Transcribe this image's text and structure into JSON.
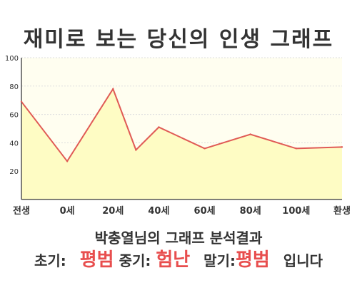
{
  "title": "재미로 보는 당신의 인생 그래프",
  "chart_data": {
    "type": "area",
    "x_labels": [
      "전생",
      "0세",
      "20세",
      "40세",
      "60세",
      "80세",
      "100세",
      "환생"
    ],
    "points": [
      {
        "x": "전생",
        "y": 69
      },
      {
        "x": "0세",
        "y": 27
      },
      {
        "x": "20세",
        "y": 78
      },
      {
        "x": "30세",
        "y": 35
      },
      {
        "x": "40세",
        "y": 51
      },
      {
        "x": "60세",
        "y": 36
      },
      {
        "x": "80세",
        "y": 46
      },
      {
        "x": "100세",
        "y": 36
      },
      {
        "x": "환생",
        "y": 37
      }
    ],
    "yticks": [
      20,
      40,
      60,
      80,
      100
    ],
    "ylim": [
      0,
      100
    ],
    "grid": true,
    "colors": {
      "line": "#e05a55",
      "fill": "#fefcc4",
      "plot_bg": "#fffef0",
      "grid": "#dddddd"
    }
  },
  "summary": "박충열님의 그래프 분석결과",
  "result": {
    "early_label": "초기:",
    "early_value": "평범",
    "mid_label": "중기:",
    "mid_value": "험난",
    "late_label": "말기:",
    "late_value": "평범",
    "tail": "입니다"
  }
}
